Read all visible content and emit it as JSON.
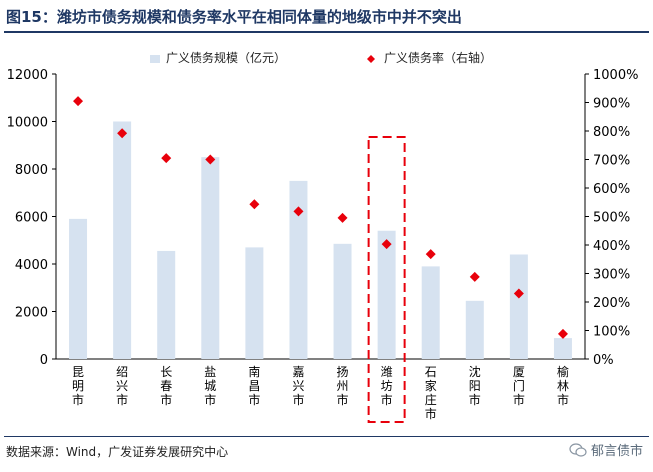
{
  "title": "图15：潍坊市债务规模和债务率水平在相同体量的地级市中并不突出",
  "source": "数据来源：Wind，广发证券发展研究中心",
  "watermark": "郁言债市",
  "colors": {
    "bar": "#d6e2f0",
    "marker": "#e8000b",
    "highlight": "#e8000b",
    "title": "#1f3864"
  },
  "chart_data": {
    "type": "bar",
    "categories": [
      "昆明市",
      "绍兴市",
      "长春市",
      "盐城市",
      "南昌市",
      "嘉兴市",
      "扬州市",
      "潍坊市",
      "石家庄市",
      "沈阳市",
      "厦门市",
      "榆林市"
    ],
    "series": [
      {
        "name": "广义债务规模（亿元）",
        "type": "bar",
        "axis": "left",
        "values": [
          5900,
          10000,
          4550,
          8500,
          4700,
          7500,
          4850,
          5400,
          3900,
          2450,
          4400,
          880
        ]
      },
      {
        "name": "广义债务率（右轴）",
        "type": "scatter",
        "axis": "right",
        "values": [
          9.05,
          7.92,
          7.05,
          7.0,
          5.43,
          5.18,
          4.95,
          4.03,
          3.68,
          2.88,
          2.3,
          0.88
        ]
      }
    ],
    "y_left": {
      "min": 0,
      "max": 12000,
      "ticks": [
        "0",
        "2000",
        "4000",
        "6000",
        "8000",
        "10000",
        "12000"
      ]
    },
    "y_right": {
      "min": 0,
      "max": 10,
      "ticks": [
        "0%",
        "100%",
        "200%",
        "300%",
        "400%",
        "500%",
        "600%",
        "700%",
        "800%",
        "900%",
        "1000%"
      ]
    },
    "highlight_category": "潍坊市",
    "legend_position": "top",
    "grid": false
  }
}
